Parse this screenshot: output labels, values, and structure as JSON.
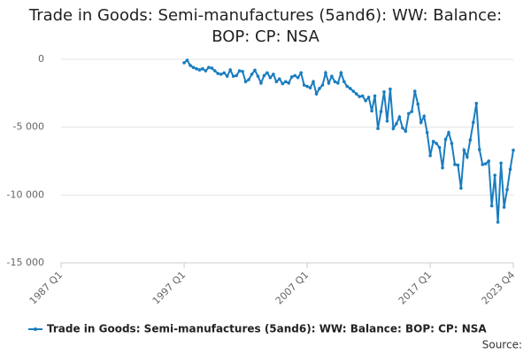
{
  "chart_data": {
    "type": "line",
    "title": "Trade in Goods: Semi-manufactures (5and6): WW: Balance: BOP: CP: NSA",
    "source": "Source:",
    "categories": [
      "1987 Q1",
      null,
      null,
      null,
      null,
      null,
      null,
      null,
      null,
      null,
      null,
      null,
      null,
      null,
      null,
      null,
      null,
      null,
      null,
      null,
      null,
      null,
      null,
      null,
      null,
      null,
      null,
      null,
      null,
      null,
      null,
      null,
      null,
      null,
      null,
      null,
      null,
      null,
      null,
      null,
      "1997 Q1",
      null,
      null,
      null,
      null,
      null,
      null,
      null,
      null,
      null,
      null,
      null,
      null,
      null,
      null,
      null,
      null,
      null,
      null,
      null,
      null,
      null,
      null,
      null,
      null,
      null,
      null,
      null,
      null,
      null,
      null,
      null,
      null,
      null,
      null,
      null,
      null,
      null,
      null,
      null,
      "2007 Q1",
      null,
      null,
      null,
      null,
      null,
      null,
      null,
      null,
      null,
      null,
      null,
      null,
      null,
      null,
      null,
      null,
      null,
      null,
      null,
      null,
      null,
      null,
      null,
      null,
      null,
      null,
      null,
      null,
      null,
      null,
      null,
      null,
      null,
      null,
      null,
      null,
      null,
      null,
      null,
      "2017 Q1",
      null,
      null,
      null,
      null,
      null,
      null,
      null,
      null,
      null,
      null,
      null,
      null,
      null,
      null,
      null,
      null,
      null,
      null,
      null,
      null,
      null,
      null,
      null,
      null,
      null,
      null,
      "2023 Q4"
    ],
    "series": [
      {
        "name": "Trade in Goods: Semi-manufactures (5and6): WW: Balance: BOP: CP: NSA",
        "color": "#1a7dc0",
        "values": [
          null,
          null,
          null,
          null,
          null,
          null,
          null,
          null,
          null,
          null,
          null,
          null,
          null,
          null,
          null,
          null,
          null,
          null,
          null,
          null,
          null,
          null,
          null,
          null,
          null,
          null,
          null,
          null,
          null,
          null,
          null,
          null,
          null,
          null,
          null,
          null,
          null,
          null,
          null,
          null,
          -260,
          -70,
          -450,
          -600,
          -700,
          -780,
          -700,
          -850,
          -600,
          -650,
          -850,
          -1050,
          -1100,
          -1000,
          -1250,
          -780,
          -1250,
          -1200,
          -850,
          -900,
          -1650,
          -1500,
          -1100,
          -800,
          -1250,
          -1750,
          -1200,
          -1000,
          -1350,
          -1100,
          -1650,
          -1450,
          -1800,
          -1650,
          -1750,
          -1300,
          -1200,
          -1350,
          -1000,
          -1900,
          -2000,
          -2100,
          -1650,
          -2550,
          -2150,
          -1900,
          -1000,
          -1750,
          -1250,
          -1650,
          -1750,
          -1000,
          -1650,
          -2000,
          -2150,
          -2350,
          -2550,
          -2750,
          -2700,
          -3050,
          -2800,
          -3800,
          -2700,
          -5100,
          -3850,
          -2400,
          -4550,
          -2200,
          -5100,
          -4750,
          -4250,
          -5050,
          -5300,
          -4000,
          -3850,
          -2350,
          -3300,
          -4650,
          -4200,
          -5400,
          -7100,
          -6050,
          -6200,
          -6500,
          -8000,
          -5900,
          -5400,
          -6200,
          -7750,
          -7800,
          -9500,
          -6700,
          -7200,
          -5950,
          -4650,
          -3250,
          -6650,
          -7750,
          -7700,
          -7500,
          -10800,
          -8550,
          -12000,
          -7650,
          -10900,
          -9600,
          -8100,
          -6700
        ]
      }
    ],
    "ylim": [
      -15000,
      0
    ],
    "yticks": [
      {
        "value": -15000,
        "label": "-15 000"
      },
      {
        "value": -10000,
        "label": "-10 000"
      },
      {
        "value": -5000,
        "label": "-5 000"
      },
      0
    ],
    "grid": true
  }
}
